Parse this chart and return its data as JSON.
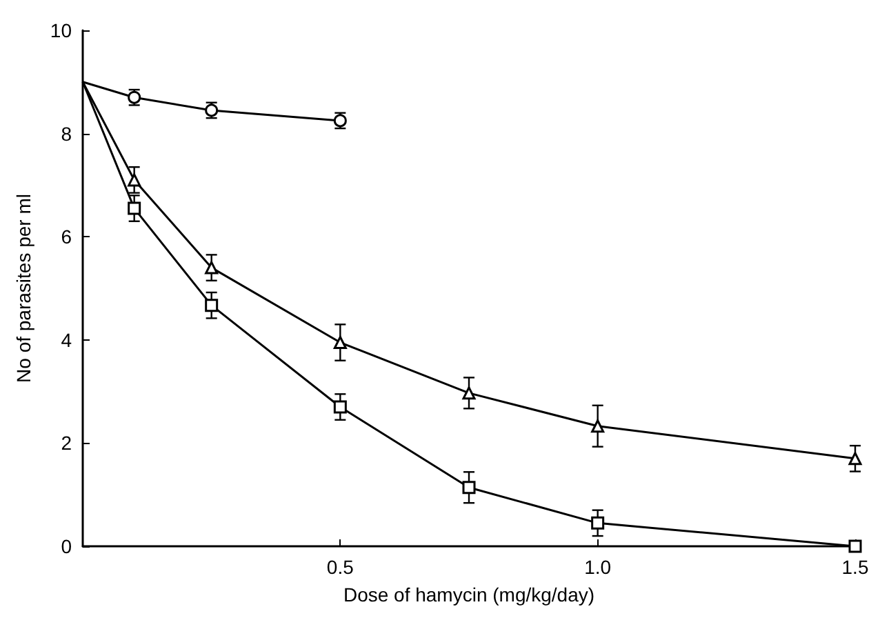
{
  "chart_data": {
    "type": "line",
    "xlabel": "Dose of hamycin (mg/kg/day)",
    "ylabel": "No of parasites per ml",
    "xlim": [
      0,
      1.5
    ],
    "xticks": [
      {
        "value": 0.5,
        "label": "0.5"
      },
      {
        "value": 1.0,
        "label": "1.0"
      },
      {
        "value": 1.5,
        "label": "1.5"
      }
    ],
    "ylim": [
      0,
      10
    ],
    "yticks": [
      0,
      2,
      4,
      6,
      8,
      10
    ],
    "grid": false,
    "line_style": "solid",
    "series": [
      {
        "color": "#000000",
        "marker": "circle",
        "x": [
          0,
          0.1,
          0.25,
          0.5
        ],
        "values": [
          9.0,
          8.7,
          8.45,
          8.25
        ],
        "errors": [
          null,
          0.15,
          0.15,
          0.15
        ]
      },
      {
        "color": "#000000",
        "marker": "triangle",
        "x": [
          0,
          0.1,
          0.25,
          0.5,
          0.75,
          1.0,
          1.5
        ],
        "values": [
          9.0,
          7.1,
          5.4,
          3.95,
          2.97,
          2.33,
          1.7
        ],
        "errors": [
          null,
          0.25,
          0.25,
          0.35,
          0.3,
          0.4,
          0.25
        ]
      },
      {
        "color": "#000000",
        "marker": "square",
        "x": [
          0,
          0.1,
          0.25,
          0.5,
          0.75,
          1.0,
          1.5
        ],
        "values": [
          9.0,
          6.55,
          4.67,
          2.7,
          1.14,
          0.45,
          0
        ],
        "errors": [
          null,
          0.25,
          0.25,
          0.25,
          0.3,
          0.25,
          null
        ]
      }
    ]
  }
}
